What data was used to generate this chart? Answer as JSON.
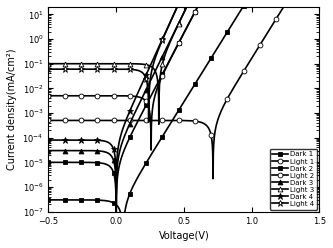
{
  "xlabel": "Voltage(V)",
  "ylabel": "Current density(mA/cm²)",
  "xlim": [
    -0.5,
    1.5
  ],
  "ylim": [
    1e-07,
    20.0
  ],
  "curves": [
    {
      "label": "Dark 1",
      "marker": "s",
      "filled": true,
      "J0": 3e-07,
      "n": 1.9,
      "Jph": 0.0,
      "Voc_shift": 0.05
    },
    {
      "label": "Light 1",
      "marker": "o",
      "filled": false,
      "J0": 3e-07,
      "n": 1.9,
      "Jph": 0.0005,
      "Voc_shift": 0.35
    },
    {
      "label": "Dark 2",
      "marker": "s",
      "filled": true,
      "J0": 1e-05,
      "n": 1.6,
      "Jph": 0.0,
      "Voc_shift": 0.0
    },
    {
      "label": "Light 2",
      "marker": "o",
      "filled": false,
      "J0": 1e-05,
      "n": 1.6,
      "Jph": 0.005,
      "Voc_shift": 0.0
    },
    {
      "label": "Dark 3",
      "marker": "^",
      "filled": true,
      "J0": 3e-05,
      "n": 1.5,
      "Jph": 0.0,
      "Voc_shift": 0.0
    },
    {
      "label": "Light 3",
      "marker": "^",
      "filled": false,
      "J0": 3e-05,
      "n": 1.5,
      "Jph": 0.1,
      "Voc_shift": 0.0
    },
    {
      "label": "Dark 4",
      "marker": "*",
      "filled": true,
      "J0": 8e-05,
      "n": 1.4,
      "Jph": 0.0,
      "Voc_shift": 0.0
    },
    {
      "label": "Light 4",
      "marker": "*",
      "filled": false,
      "J0": 8e-05,
      "n": 1.4,
      "Jph": 0.06,
      "Voc_shift": 0.0
    }
  ]
}
